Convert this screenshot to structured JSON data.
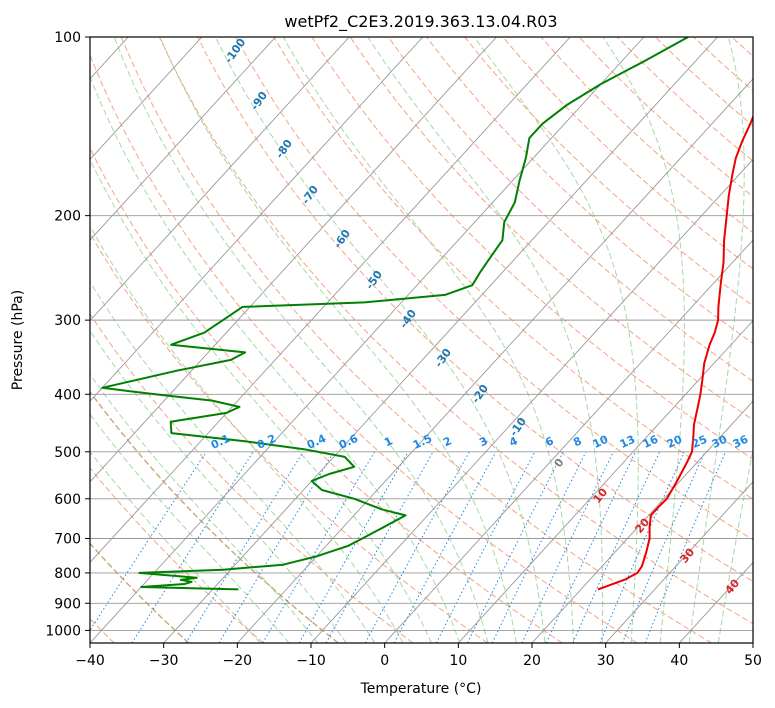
{
  "chart_data": {
    "type": "line",
    "title": "wetPf2_C2E3.2019.363.13.04.R03",
    "xlabel": "Temperature (°C)",
    "ylabel": "Pressure (hPa)",
    "xlim": [
      -40,
      50
    ],
    "ylim_hpa": [
      1050,
      100
    ],
    "y_scale": "log",
    "skew": "skew-T log-P",
    "xticks": [
      -40,
      -30,
      -20,
      -10,
      0,
      10,
      20,
      30,
      40,
      50
    ],
    "yticks": [
      1000,
      900,
      800,
      700,
      600,
      500,
      400,
      300,
      200,
      100
    ],
    "grid": true,
    "colors": {
      "temperature": "#ee0000",
      "dewpoint": "#008000",
      "isotherm": "#999999",
      "dry_adiabat": "#f4a582",
      "moist_adiabat": "#a6d8a6",
      "mixing_ratio": "#1e88e5",
      "dry_label": "#1f77b4",
      "moist_label": "#d62728",
      "dry_adiabat_brown": "#c8a878"
    },
    "dry_adiabat_labels": [
      "-100",
      "-90",
      "-80",
      "-70",
      "-60",
      "-50",
      "-40",
      "-30",
      "-20",
      "-10",
      "0"
    ],
    "moist_adiabat_labels": [
      "10",
      "20",
      "30",
      "40"
    ],
    "mixing_ratio_labels": [
      "0.1",
      "0.2",
      "0.4",
      "0.6",
      "1",
      "1.5",
      "2",
      "3",
      "4",
      "6",
      "8",
      "10",
      "13",
      "16",
      "20",
      "25",
      "30",
      "36"
    ],
    "series": [
      {
        "name": "Temperature",
        "points": [
          [
            853,
            22.3
          ],
          [
            820,
            24.8
          ],
          [
            800,
            25.6
          ],
          [
            780,
            25.4
          ],
          [
            740,
            24.3
          ],
          [
            700,
            23.0
          ],
          [
            670,
            21.6
          ],
          [
            640,
            20.3
          ],
          [
            620,
            20.3
          ],
          [
            600,
            20.4
          ],
          [
            560,
            19.6
          ],
          [
            520,
            18.6
          ],
          [
            500,
            18.0
          ],
          [
            470,
            16.2
          ],
          [
            450,
            14.9
          ],
          [
            420,
            13.2
          ],
          [
            400,
            12.0
          ],
          [
            380,
            10.6
          ],
          [
            355,
            8.7
          ],
          [
            330,
            7.1
          ],
          [
            315,
            6.3
          ],
          [
            300,
            5.2
          ],
          [
            285,
            3.6
          ],
          [
            260,
            1.0
          ],
          [
            240,
            -1.2
          ],
          [
            220,
            -3.9
          ],
          [
            200,
            -6.6
          ],
          [
            185,
            -8.8
          ],
          [
            170,
            -11.0
          ],
          [
            160,
            -12.5
          ],
          [
            150,
            -13.7
          ],
          [
            140,
            -14.8
          ],
          [
            130,
            -16.1
          ],
          [
            120,
            -17.3
          ],
          [
            110,
            -18.3
          ],
          [
            100,
            -19.3
          ]
        ]
      },
      {
        "name": "Dewpoint",
        "points": [
          [
            853,
            -26.5
          ],
          [
            845,
            -40.0
          ],
          [
            835,
            -34.5
          ],
          [
            828,
            -33.8
          ],
          [
            822,
            -35.5
          ],
          [
            815,
            -33.6
          ],
          [
            800,
            -42.0
          ],
          [
            790,
            -31.0
          ],
          [
            775,
            -23.5
          ],
          [
            750,
            -20.0
          ],
          [
            720,
            -17.0
          ],
          [
            700,
            -16.0
          ],
          [
            660,
            -14.0
          ],
          [
            640,
            -13.0
          ],
          [
            625,
            -17.0
          ],
          [
            600,
            -22.0
          ],
          [
            580,
            -27.5
          ],
          [
            560,
            -30.0
          ],
          [
            545,
            -28.5
          ],
          [
            530,
            -26.0
          ],
          [
            510,
            -28.5
          ],
          [
            495,
            -35.0
          ],
          [
            480,
            -44.0
          ],
          [
            465,
            -55.0
          ],
          [
            445,
            -56.5
          ],
          [
            430,
            -50.0
          ],
          [
            420,
            -49.0
          ],
          [
            410,
            -53.5
          ],
          [
            400,
            -62.0
          ],
          [
            390,
            -70.0
          ],
          [
            365,
            -62.0
          ],
          [
            350,
            -56.0
          ],
          [
            340,
            -55.0
          ],
          [
            330,
            -66.0
          ],
          [
            315,
            -63.0
          ],
          [
            300,
            -62.0
          ],
          [
            285,
            -61.0
          ],
          [
            280,
            -45.0
          ],
          [
            272,
            -35.0
          ],
          [
            262,
            -32.5
          ],
          [
            250,
            -33.0
          ],
          [
            235,
            -33.5
          ],
          [
            220,
            -34.0
          ],
          [
            205,
            -36.0
          ],
          [
            190,
            -37.0
          ],
          [
            175,
            -39.0
          ],
          [
            160,
            -41.0
          ],
          [
            148,
            -43.0
          ],
          [
            140,
            -43.0
          ],
          [
            130,
            -42.0
          ],
          [
            120,
            -40.0
          ],
          [
            110,
            -37.0
          ],
          [
            100,
            -34.0
          ]
        ]
      }
    ]
  }
}
